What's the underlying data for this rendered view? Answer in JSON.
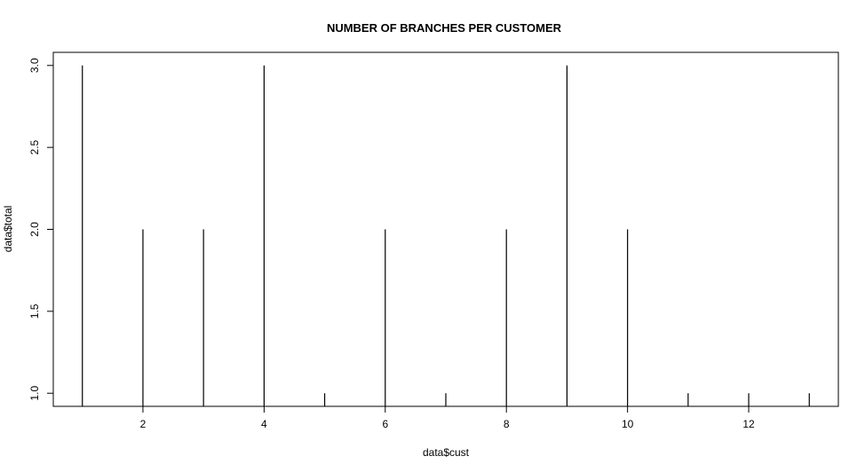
{
  "chart_data": {
    "type": "bar",
    "style": "vertical-lines",
    "title": "NUMBER OF BRANCHES PER CUSTOMER",
    "xlabel": "data$cust",
    "ylabel": "data$total",
    "x": [
      1,
      2,
      3,
      4,
      5,
      6,
      7,
      8,
      9,
      10,
      11,
      12,
      13
    ],
    "values": [
      3,
      2,
      2,
      3,
      1,
      2,
      1,
      2,
      3,
      2,
      1,
      1,
      1
    ],
    "xlim": [
      0.52,
      13.48
    ],
    "ylim": [
      0.92,
      3.08
    ],
    "x_ticks": [
      2,
      4,
      6,
      8,
      10,
      12
    ],
    "x_tick_labels": [
      "2",
      "4",
      "6",
      "8",
      "10",
      "12"
    ],
    "y_ticks": [
      1.0,
      1.5,
      2.0,
      2.5,
      3.0
    ],
    "y_tick_labels": [
      "1.0",
      "1.5",
      "2.0",
      "2.5",
      "3.0"
    ],
    "grid": false,
    "legend": "none",
    "colors": {
      "bar": "#000000",
      "frame": "#000000",
      "background": "#ffffff"
    }
  }
}
